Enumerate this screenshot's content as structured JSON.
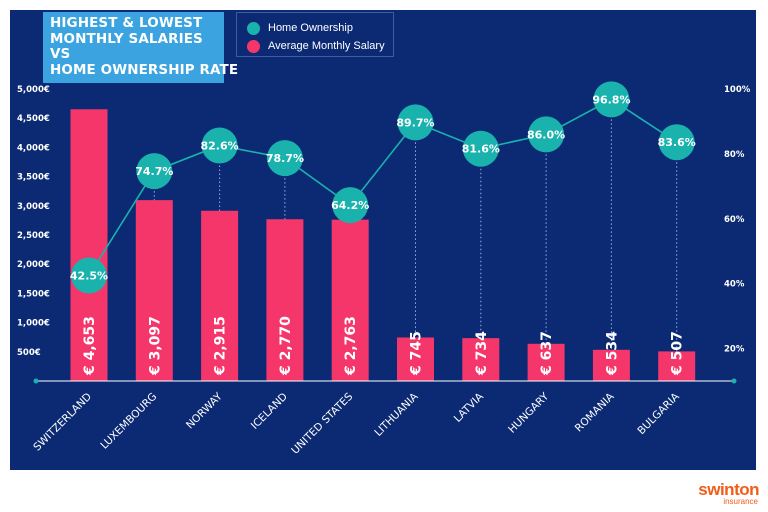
{
  "title_lines": [
    "HIGHEST & LOWEST",
    "MONTHLY SALARIES",
    "VS",
    "HOME OWNERSHIP RATE"
  ],
  "legend": {
    "ownership_label": "Home Ownership",
    "salary_label": "Average Monthly Salary"
  },
  "brand": {
    "name": "swinton",
    "sub": "insurance"
  },
  "colors": {
    "background": "#0b2a73",
    "bar": "#f5366b",
    "line": "#1ab2ad",
    "text": "#ffffff",
    "brand": "#f25c19"
  },
  "chart_data": {
    "type": "bar",
    "categories": [
      "SWITZERLAND",
      "LUXEMBOURG",
      "NORWAY",
      "ICELAND",
      "UNITED STATES",
      "LITHUANIA",
      "LATVIA",
      "HUNGARY",
      "ROMANIA",
      "BULGARIA"
    ],
    "series": [
      {
        "name": "Average Monthly Salary",
        "type": "bar",
        "axis": "left",
        "values": [
          4653,
          3097,
          2915,
          2770,
          2763,
          745,
          734,
          637,
          534,
          507
        ],
        "labels": [
          "€ 4,653",
          "€ 3,097",
          "€ 2,915",
          "€ 2,770",
          "€ 2,763",
          "€ 745",
          "€ 734",
          "€ 637",
          "€ 534",
          "€ 507"
        ]
      },
      {
        "name": "Home Ownership",
        "type": "line",
        "axis": "right",
        "values": [
          42.5,
          74.7,
          82.6,
          78.7,
          64.2,
          89.7,
          81.6,
          86.0,
          96.8,
          83.6
        ],
        "labels": [
          "42.5%",
          "74.7%",
          "82.6%",
          "78.7%",
          "64.2%",
          "89.7%",
          "81.6%",
          "86.0%",
          "96.8%",
          "83.6%"
        ]
      }
    ],
    "ylim": [
      0,
      5000
    ],
    "y_ticks": [
      "500€",
      "1,000€",
      "1,500€",
      "2,000€",
      "2,500€",
      "3,000€",
      "3,500€",
      "4,000€",
      "4,500€",
      "5,000€"
    ],
    "y_tick_values": [
      500,
      1000,
      1500,
      2000,
      2500,
      3000,
      3500,
      4000,
      4500,
      5000
    ],
    "y2lim": [
      10,
      100
    ],
    "y2_ticks": [
      "20%",
      "40%",
      "60%",
      "80%",
      "100%"
    ],
    "y2_tick_values": [
      20,
      40,
      60,
      80,
      100
    ],
    "grid": false,
    "legend_position": "top"
  }
}
